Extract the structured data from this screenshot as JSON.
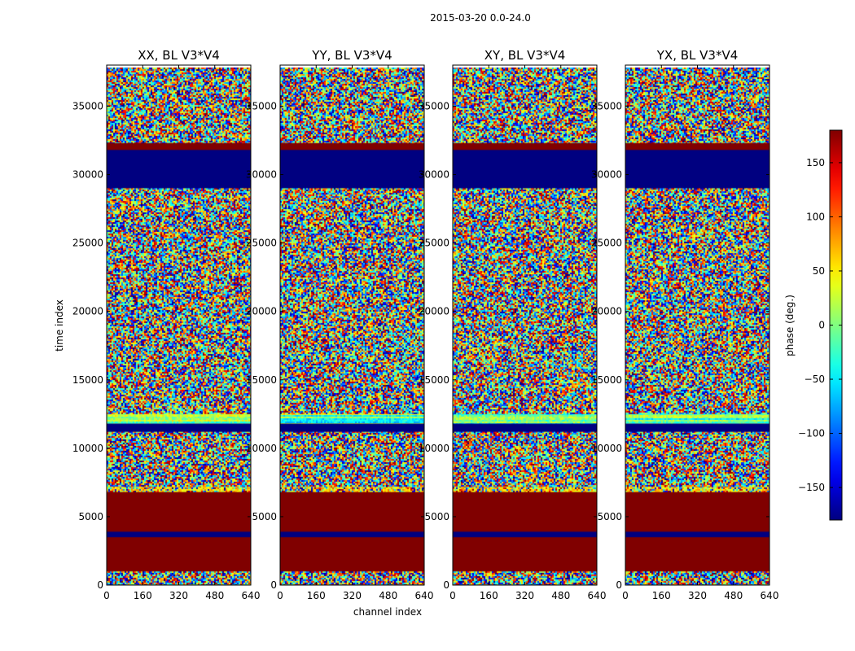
{
  "figure": {
    "suptitle": "2015-03-20 0.0-24.0"
  },
  "chart_data": {
    "type": "heatmap",
    "title": "2015-03-20 0.0-24.0",
    "xlabel": "channel index",
    "ylabel": "time index",
    "xlim": [
      0,
      640
    ],
    "ylim": [
      0,
      38000
    ],
    "x_ticks": [
      0,
      160,
      320,
      480,
      640
    ],
    "y_ticks": [
      0,
      5000,
      10000,
      15000,
      20000,
      25000,
      30000,
      35000
    ],
    "x_tick_labels": [
      "0",
      "160",
      "320",
      "480",
      "640"
    ],
    "y_tick_labels": [
      "0",
      "5000",
      "10000",
      "15000",
      "20000",
      "25000",
      "30000",
      "35000"
    ],
    "panels": [
      {
        "title": "XX, BL V3*V4"
      },
      {
        "title": "YY, BL V3*V4"
      },
      {
        "title": "XY, BL V3*V4"
      },
      {
        "title": "YX, BL V3*V4"
      }
    ],
    "colorbar": {
      "label": "phase (deg.)",
      "range": [
        -180,
        180
      ],
      "ticks": [
        -150,
        -100,
        -50,
        0,
        50,
        100,
        150
      ],
      "tick_labels": [
        "−150",
        "−100",
        "−50",
        "0",
        "50",
        "100",
        "150"
      ],
      "colormap": "jet"
    },
    "bands": [
      {
        "from": 0,
        "to": 1000,
        "kind": "noise"
      },
      {
        "from": 1000,
        "to": 3500,
        "kind": "max"
      },
      {
        "from": 3500,
        "to": 3900,
        "kind": "min"
      },
      {
        "from": 3900,
        "to": 6800,
        "kind": "max"
      },
      {
        "from": 6800,
        "to": 7200,
        "kind": "mixed"
      },
      {
        "from": 7200,
        "to": 11200,
        "kind": "noise"
      },
      {
        "from": 11200,
        "to": 11800,
        "kind": "min"
      },
      {
        "from": 11800,
        "to": 12500,
        "kind": "stripe"
      },
      {
        "from": 12500,
        "to": 29000,
        "kind": "noise"
      },
      {
        "from": 29000,
        "to": 31800,
        "kind": "min"
      },
      {
        "from": 31800,
        "to": 32300,
        "kind": "max"
      },
      {
        "from": 32300,
        "to": 37800,
        "kind": "noise"
      }
    ]
  }
}
